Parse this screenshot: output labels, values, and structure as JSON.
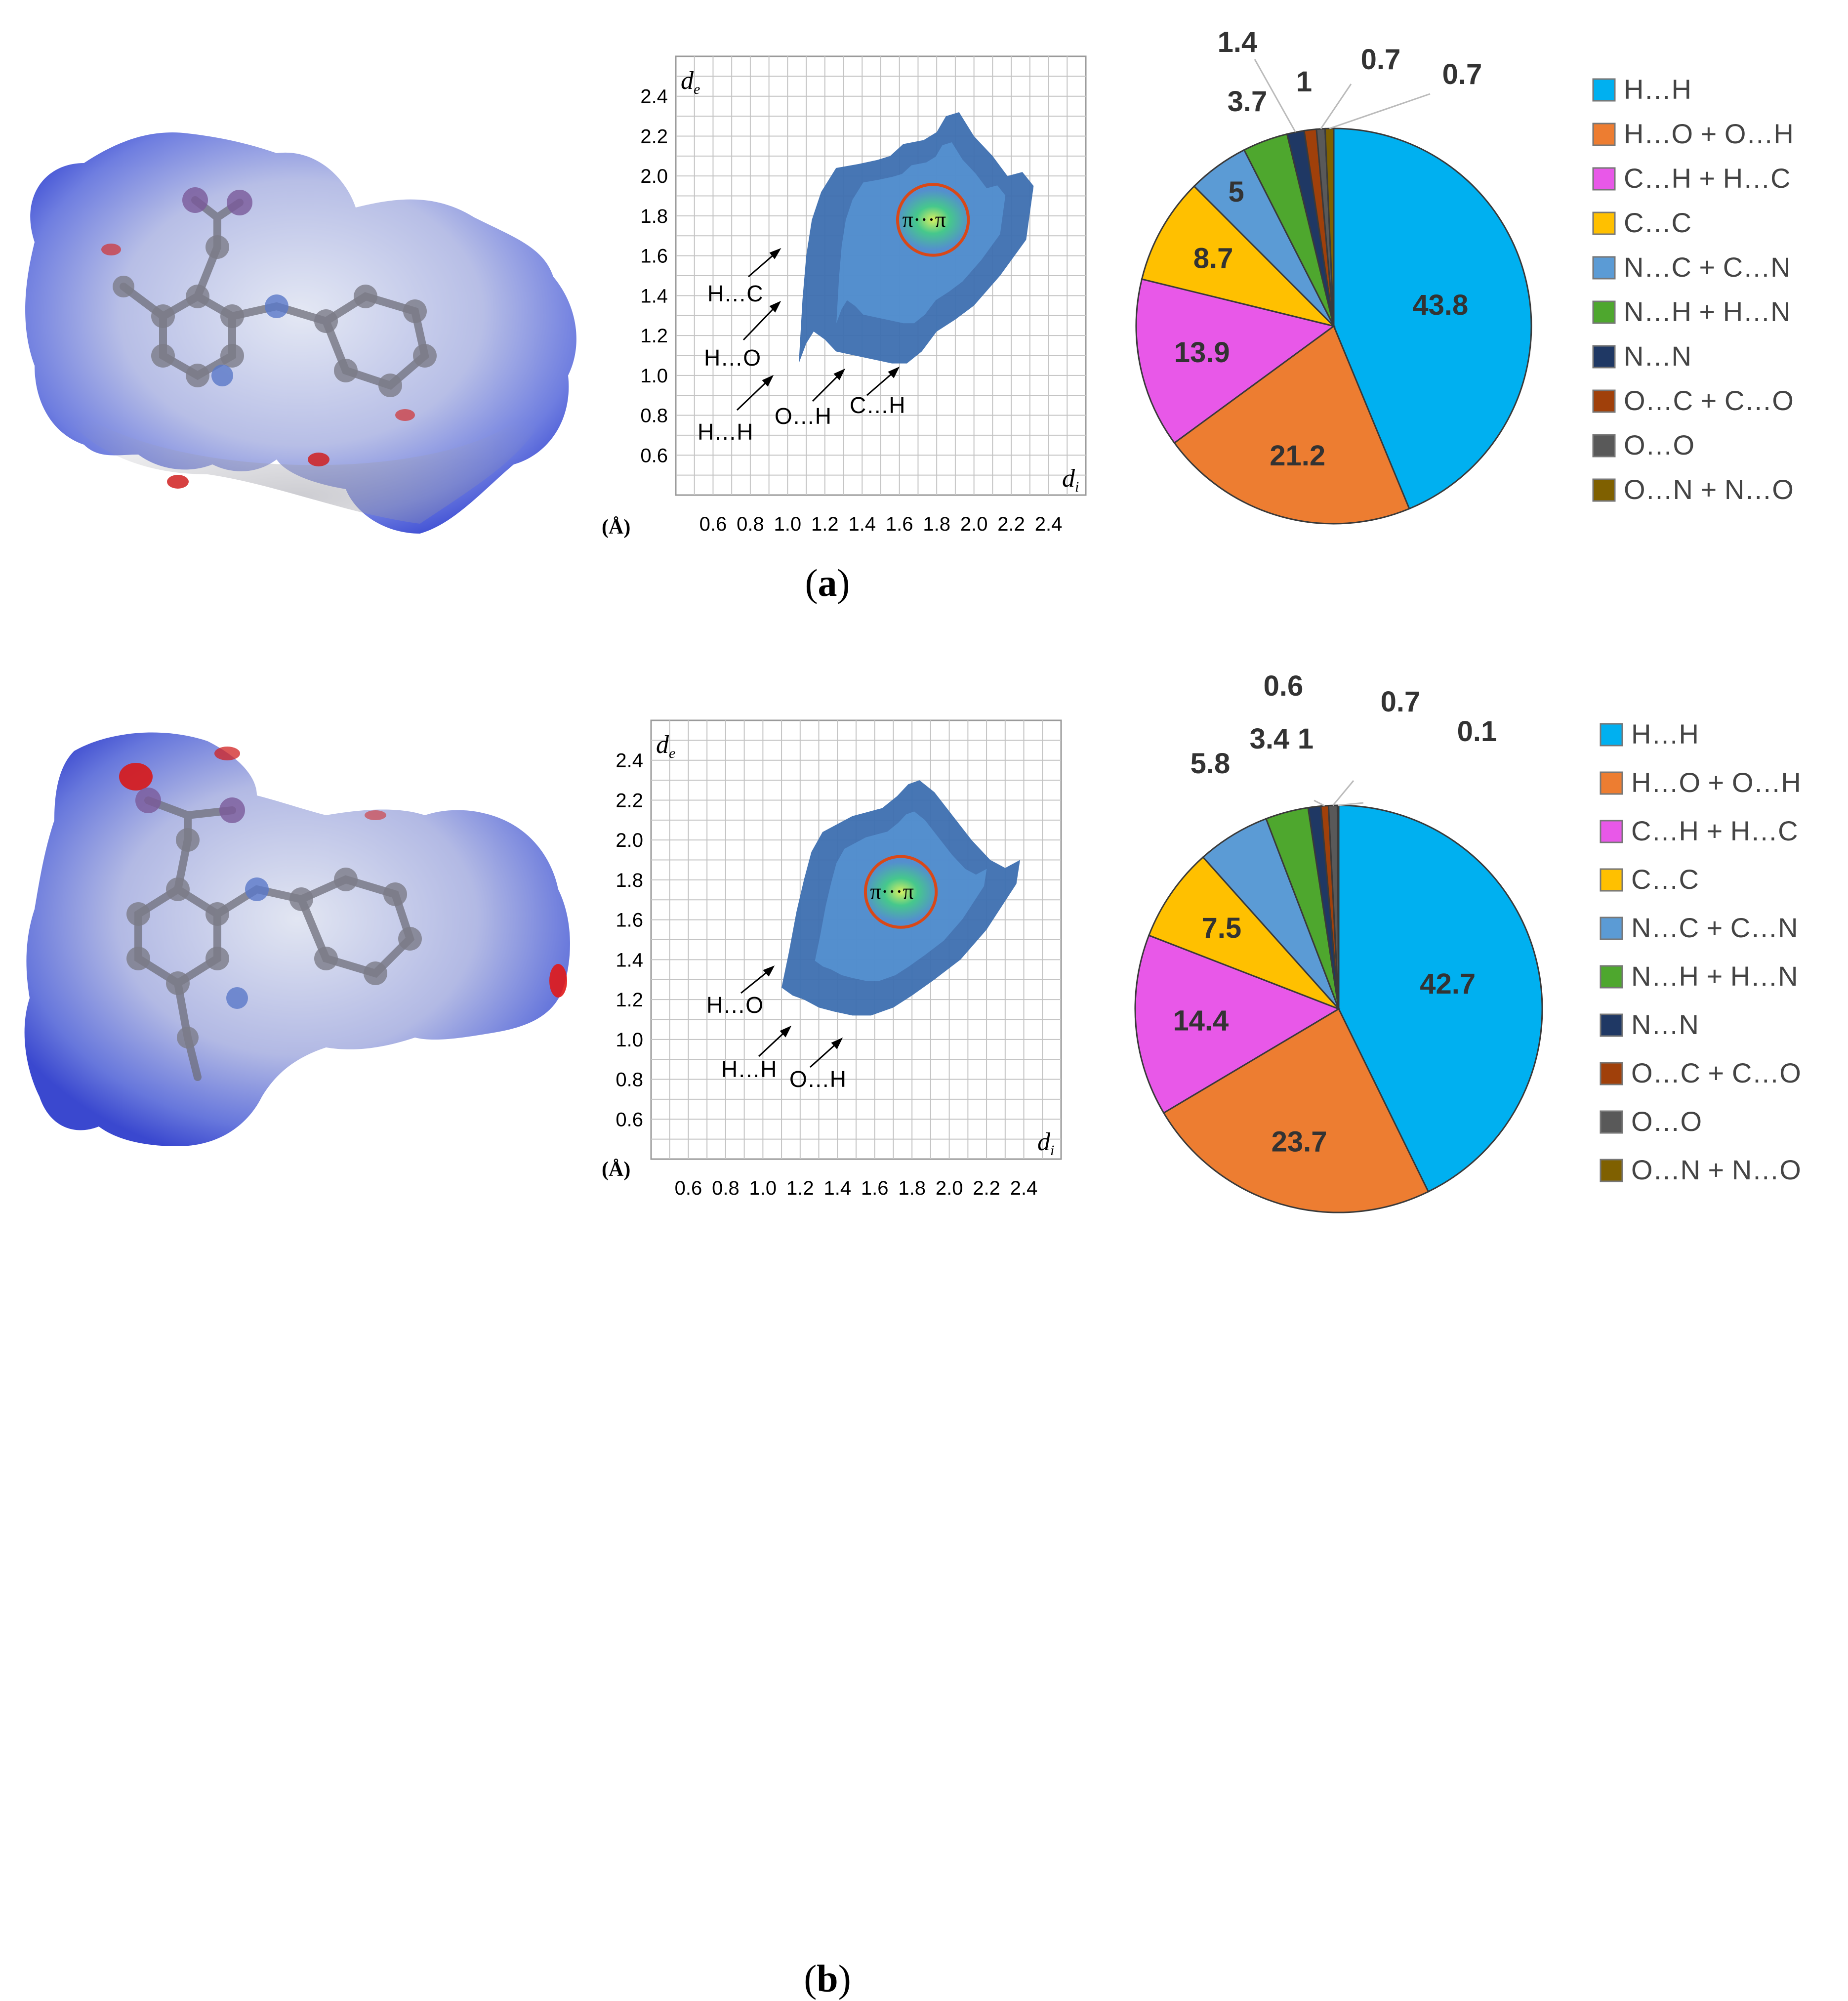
{
  "figure": {
    "panels": [
      {
        "caption_prefix": "(",
        "caption_letter": "a",
        "caption_suffix": ")",
        "fingerprint": {
          "y_axis_label": "d",
          "y_axis_subscript": "e",
          "x_axis_label": "d",
          "x_axis_subscript": "i",
          "unit_label": "(Å)",
          "x_ticks": [
            "0.6",
            "0.8",
            "1.0",
            "1.2",
            "1.4",
            "1.6",
            "1.8",
            "2.0",
            "2.2",
            "2.4"
          ],
          "y_ticks": [
            "2.4",
            "2.2",
            "2.0",
            "1.8",
            "1.6",
            "1.4",
            "1.2",
            "1.0",
            "0.8",
            "0.6"
          ],
          "pi_label": "π···π",
          "annotations": [
            "H…C",
            "H…O",
            "H…H",
            "O…H",
            "C…H"
          ]
        },
        "pie_labels": [
          "43.8",
          "21.2",
          "13.9",
          "8.7",
          "5",
          "3.7",
          "1.4",
          "1",
          "0.7",
          "0.7"
        ],
        "legend": [
          "H…H",
          "H…O + O…H",
          "C…H + H…C",
          "C…C",
          "N…C + C…N",
          "N…H + H…N",
          "N…N",
          "O…C + C…O",
          "O…O",
          "O…N + N…O"
        ]
      },
      {
        "caption_prefix": "(",
        "caption_letter": "b",
        "caption_suffix": ")",
        "fingerprint": {
          "y_axis_label": "d",
          "y_axis_subscript": "e",
          "x_axis_label": "d",
          "x_axis_subscript": "i",
          "unit_label": "(Å)",
          "x_ticks": [
            "0.6",
            "0.8",
            "1.0",
            "1.2",
            "1.4",
            "1.6",
            "1.8",
            "2.0",
            "2.2",
            "2.4"
          ],
          "y_ticks": [
            "2.4",
            "2.2",
            "2.0",
            "1.8",
            "1.6",
            "1.4",
            "1.2",
            "1.0",
            "0.8",
            "0.6"
          ],
          "pi_label": "π···π",
          "annotations": [
            "H…O",
            "H…H",
            "O…H"
          ]
        },
        "pie_labels": [
          "42.7",
          "23.7",
          "14.4",
          "7.5",
          "5.8",
          "3.4",
          "1",
          "0.6",
          "0.7",
          "0.1"
        ],
        "legend": [
          "H…H",
          "H…O + O…H",
          "C…H + H…C",
          "C…C",
          "N…C + C…N",
          "N…H + H…N",
          "N…N",
          "O…C + C…O",
          "O…O",
          "O…N + N…O"
        ]
      }
    ]
  },
  "chart_data": [
    {
      "type": "pie",
      "panel": "a",
      "categories": [
        "H…H",
        "H…O + O…H",
        "C…H + H…C",
        "C…C",
        "N…C + C…N",
        "N…H + H…N",
        "N…N",
        "O…C + C…O",
        "O…O",
        "O…N + N…O"
      ],
      "values": [
        43.8,
        21.2,
        13.9,
        8.7,
        5.0,
        3.7,
        1.4,
        1.0,
        0.7,
        0.7
      ],
      "colors": [
        "#00B0F0",
        "#ED7D31",
        "#E858E8",
        "#FFC000",
        "#5B9BD5",
        "#4EA72E",
        "#1F3864",
        "#A0400A",
        "#595959",
        "#7F6000"
      ],
      "legend_position": "right"
    },
    {
      "type": "pie",
      "panel": "b",
      "categories": [
        "H…H",
        "H…O + O…H",
        "C…H + H…C",
        "C…C",
        "N…C + C…N",
        "N…H + H…N",
        "N…N",
        "O…C + C…O",
        "O…O",
        "O…N + N…O"
      ],
      "values": [
        42.7,
        23.7,
        14.4,
        7.5,
        5.8,
        3.4,
        1.0,
        0.6,
        0.7,
        0.1
      ],
      "colors": [
        "#00B0F0",
        "#ED7D31",
        "#E858E8",
        "#FFC000",
        "#5B9BD5",
        "#4EA72E",
        "#1F3864",
        "#A0400A",
        "#595959",
        "#7F6000"
      ],
      "legend_position": "right"
    },
    {
      "type": "scatter",
      "panel": "a",
      "description_free": true,
      "xlim": [
        0.4,
        2.6
      ],
      "ylim": [
        0.4,
        2.6
      ],
      "x_ticks": [
        0.6,
        0.8,
        1.0,
        1.2,
        1.4,
        1.6,
        1.8,
        2.0,
        2.2,
        2.4
      ],
      "y_ticks": [
        0.6,
        0.8,
        1.0,
        1.2,
        1.4,
        1.6,
        1.8,
        2.0,
        2.2,
        2.4
      ],
      "grid": true,
      "pi_circle_center": [
        1.78,
        1.78
      ],
      "pi_circle_radius": 0.19,
      "density_outline_x": [
        1.06,
        1.1,
        1.14,
        1.2,
        1.26,
        1.36,
        1.46,
        1.56,
        1.64,
        1.72,
        1.8,
        1.9,
        2.0,
        2.14,
        2.28,
        2.32,
        2.26,
        2.18,
        2.1,
        2.0,
        1.92,
        1.85,
        1.8,
        1.73,
        1.62,
        1.55,
        1.48,
        1.38,
        1.26,
        1.18,
        1.13,
        1.1,
        1.08,
        1.06
      ],
      "density_outline_y": [
        1.06,
        1.16,
        1.22,
        1.18,
        1.12,
        1.1,
        1.08,
        1.06,
        1.06,
        1.12,
        1.22,
        1.28,
        1.35,
        1.5,
        1.68,
        1.95,
        2.02,
        2.0,
        2.1,
        2.2,
        2.32,
        2.3,
        2.22,
        2.18,
        2.16,
        2.1,
        2.08,
        2.06,
        2.04,
        1.92,
        1.78,
        1.6,
        1.38,
        1.06
      ]
    },
    {
      "type": "scatter",
      "panel": "b",
      "xlim": [
        0.4,
        2.6
      ],
      "ylim": [
        0.4,
        2.6
      ],
      "x_ticks": [
        0.6,
        0.8,
        1.0,
        1.2,
        1.4,
        1.6,
        1.8,
        2.0,
        2.2,
        2.4
      ],
      "y_ticks": [
        0.6,
        0.8,
        1.0,
        1.2,
        1.4,
        1.6,
        1.8,
        2.0,
        2.2,
        2.4
      ],
      "grid": true,
      "pi_circle_center": [
        1.74,
        1.74
      ],
      "pi_circle_radius": 0.19,
      "density_outline_x": [
        1.1,
        1.16,
        1.22,
        1.3,
        1.38,
        1.48,
        1.58,
        1.7,
        1.8,
        1.92,
        2.06,
        2.2,
        2.36,
        2.38,
        2.3,
        2.22,
        2.12,
        2.02,
        1.92,
        1.84,
        1.78,
        1.72,
        1.64,
        1.56,
        1.48,
        1.4,
        1.32,
        1.26,
        1.22,
        1.18,
        1.14,
        1.1
      ],
      "density_outline_y": [
        1.26,
        1.22,
        1.2,
        1.16,
        1.14,
        1.12,
        1.12,
        1.16,
        1.22,
        1.3,
        1.4,
        1.55,
        1.78,
        1.9,
        1.86,
        1.9,
        2.0,
        2.12,
        2.24,
        2.3,
        2.28,
        2.22,
        2.16,
        2.14,
        2.12,
        2.08,
        2.04,
        1.94,
        1.8,
        1.64,
        1.44,
        1.26
      ]
    }
  ]
}
